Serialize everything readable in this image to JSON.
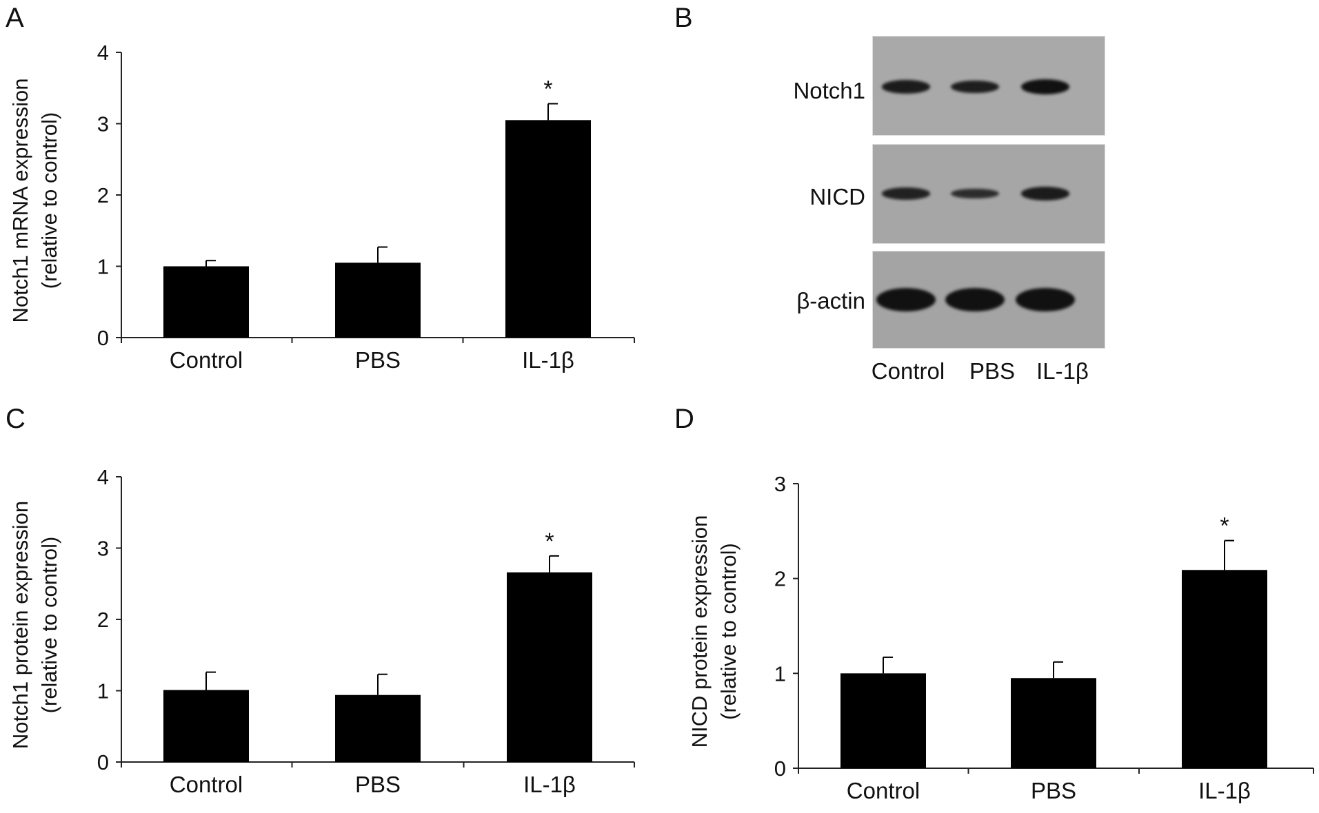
{
  "panels": {
    "a": "A",
    "b": "B",
    "c": "C",
    "d": "D"
  },
  "western_blot": {
    "rows": [
      "Notch1",
      "NICD",
      "β-actin"
    ],
    "lanes": [
      "Control",
      "PBS",
      "IL-1β"
    ],
    "band_intensity": {
      "Notch1": [
        0.85,
        0.8,
        1.0
      ],
      "NICD": [
        0.75,
        0.6,
        0.85
      ],
      "β-actin": [
        1.0,
        1.0,
        1.0
      ]
    }
  },
  "chart_data": [
    {
      "type": "bar",
      "panel": "A",
      "categories": [
        "Control",
        "PBS",
        "IL-1β"
      ],
      "values": [
        1.0,
        1.05,
        3.05
      ],
      "errors": [
        0.08,
        0.22,
        0.23
      ],
      "ylabel": "Notch1 mRNA expression",
      "ylabel2": "(relative to control)",
      "ylim": [
        0,
        4
      ],
      "yticks": [
        "0",
        "1",
        "2",
        "3",
        "4"
      ],
      "significance": [
        "",
        "",
        "*"
      ]
    },
    {
      "type": "bar",
      "panel": "C",
      "categories": [
        "Control",
        "PBS",
        "IL-1β"
      ],
      "values": [
        1.01,
        0.94,
        2.66
      ],
      "errors": [
        0.25,
        0.29,
        0.23
      ],
      "ylabel": "Notch1 protein expression",
      "ylabel2": "(relative to control)",
      "ylim": [
        0,
        4
      ],
      "yticks": [
        "0",
        "1",
        "2",
        "3",
        "4"
      ],
      "significance": [
        "",
        "",
        "*"
      ]
    },
    {
      "type": "bar",
      "panel": "D",
      "categories": [
        "Control",
        "PBS",
        "IL-1β"
      ],
      "values": [
        1.0,
        0.95,
        2.09
      ],
      "errors": [
        0.17,
        0.17,
        0.31
      ],
      "ylabel": "NICD protein expression",
      "ylabel2": "(relative to control)",
      "ylim": [
        0,
        3
      ],
      "yticks": [
        "0",
        "1",
        "2",
        "3"
      ],
      "significance": [
        "",
        "",
        "*"
      ]
    }
  ]
}
